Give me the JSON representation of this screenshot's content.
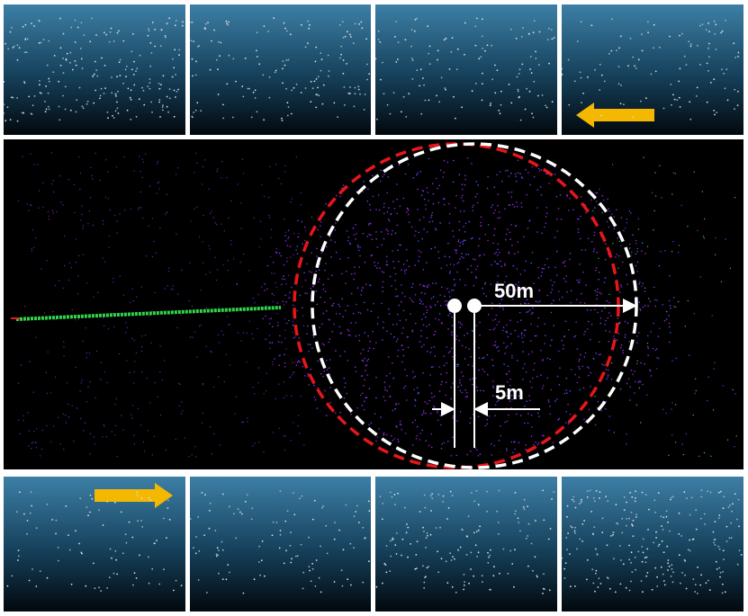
{
  "annotations": {
    "radius": "50m",
    "offset": "5m"
  }
}
